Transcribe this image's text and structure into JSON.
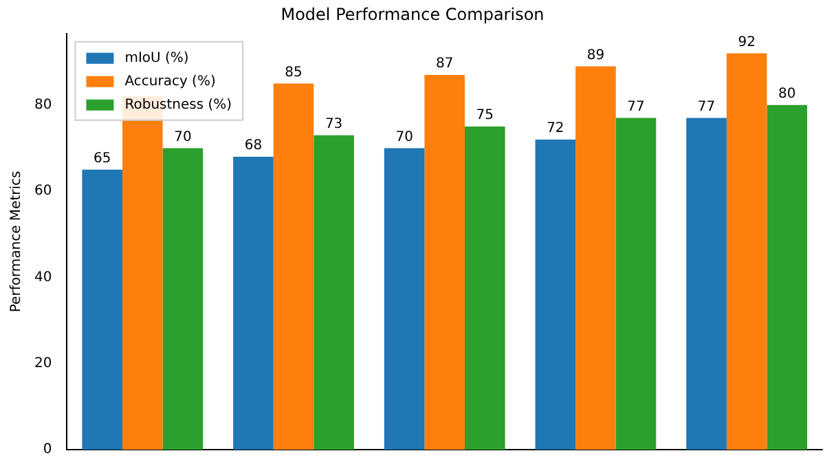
{
  "chart_data": {
    "type": "bar",
    "title": "Model Performance Comparison",
    "ylabel": "Performance Metrics",
    "categories": [
      null,
      null,
      null,
      null,
      null
    ],
    "series": [
      {
        "name": "mIoU (%)",
        "color": "#1f77b4",
        "values": [
          65,
          68,
          70,
          72,
          77
        ],
        "value_labels": [
          "65",
          "68",
          "70",
          "72",
          "77"
        ]
      },
      {
        "name": "Accuracy (%)",
        "color": "#ff7f0e",
        "values": [
          82,
          85,
          87,
          89,
          92
        ],
        "value_labels": [
          null,
          "85",
          "87",
          "89",
          "92"
        ]
      },
      {
        "name": "Robustness (%)",
        "color": "#2ca02c",
        "values": [
          70,
          73,
          75,
          77,
          80
        ],
        "value_labels": [
          "70",
          "73",
          "75",
          "77",
          "80"
        ]
      }
    ],
    "ylim": [
      0,
      96.6
    ],
    "yticks": [
      0,
      20,
      40,
      60,
      80
    ],
    "grid": false,
    "legend": "top left",
    "tick_labels": "y"
  }
}
